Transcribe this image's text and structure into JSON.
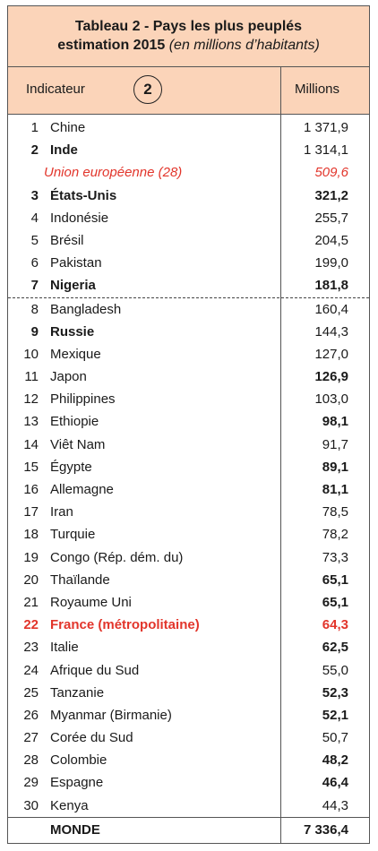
{
  "header": {
    "title": "Tableau 2 - Pays les plus peuplés",
    "subtitle": "estimation 2015",
    "subtitle_note": "(en millions d’habitants)"
  },
  "columns": {
    "indicator": "Indicateur",
    "badge": "2",
    "value": "Millions"
  },
  "rows": [
    {
      "rank": 1,
      "name": "Chine",
      "value": "1 371,9"
    },
    {
      "rank": 2,
      "name": "Inde",
      "value": "1 314,1",
      "name_bold": true
    },
    {
      "name": "Union européenne (28)",
      "value": "509,6",
      "color": "#e2352b",
      "italic": true
    },
    {
      "rank": 3,
      "name": "États-Unis",
      "value": "321,2",
      "bold": true,
      "name_bold": true
    },
    {
      "rank": 4,
      "name": "Indonésie",
      "value": "255,7"
    },
    {
      "rank": 5,
      "name": "Brésil",
      "value": "204,5"
    },
    {
      "rank": 6,
      "name": "Pakistan",
      "value": "199,0"
    },
    {
      "rank": 7,
      "name": "Nigeria",
      "value": "181,8",
      "bold": true,
      "name_bold": true
    },
    {
      "rank": 8,
      "name": "Bangladesh",
      "value": "160,4",
      "dashed": true
    },
    {
      "rank": 9,
      "name": "Russie",
      "value": "144,3",
      "name_bold": true
    },
    {
      "rank": 10,
      "name": "Mexique",
      "value": "127,0"
    },
    {
      "rank": 11,
      "name": "Japon",
      "value": "126,9",
      "bold": true
    },
    {
      "rank": 12,
      "name": "Philippines",
      "value": "103,0"
    },
    {
      "rank": 13,
      "name": "Ethiopie",
      "value": "98,1",
      "bold": true
    },
    {
      "rank": 14,
      "name": "Viêt Nam",
      "value": "91,7"
    },
    {
      "rank": 15,
      "name": "Égypte",
      "value": "89,1",
      "bold": true
    },
    {
      "rank": 16,
      "name": "Allemagne",
      "value": "81,1",
      "bold": true
    },
    {
      "rank": 17,
      "name": "Iran",
      "value": "78,5"
    },
    {
      "rank": 18,
      "name": "Turquie",
      "value": "78,2"
    },
    {
      "rank": 19,
      "name": "Congo (Rép. dém. du)",
      "value": "73,3"
    },
    {
      "rank": 20,
      "name": "Thaïlande",
      "value": "65,1",
      "bold": true
    },
    {
      "rank": 21,
      "name": "Royaume Uni",
      "value": "65,1",
      "bold": true
    },
    {
      "rank": 22,
      "name": "France (métropolitaine)",
      "value": "64,3",
      "bold": true,
      "name_bold": true,
      "color": "#e2352b"
    },
    {
      "rank": 23,
      "name": "Italie",
      "value": "62,5",
      "bold": true
    },
    {
      "rank": 24,
      "name": "Afrique du Sud",
      "value": "55,0"
    },
    {
      "rank": 25,
      "name": "Tanzanie",
      "value": "52,3",
      "bold": true
    },
    {
      "rank": 26,
      "name": "Myanmar (Birmanie)",
      "value": "52,1",
      "bold": true
    },
    {
      "rank": 27,
      "name": "Corée du Sud",
      "value": "50,7"
    },
    {
      "rank": 28,
      "name": "Colombie",
      "value": "48,2",
      "bold": true
    },
    {
      "rank": 29,
      "name": "Espagne",
      "value": "46,4",
      "bold": true
    },
    {
      "rank": 30,
      "name": "Kenya",
      "value": "44,3"
    }
  ],
  "total": {
    "label": "MONDE",
    "value": "7 336,4"
  }
}
